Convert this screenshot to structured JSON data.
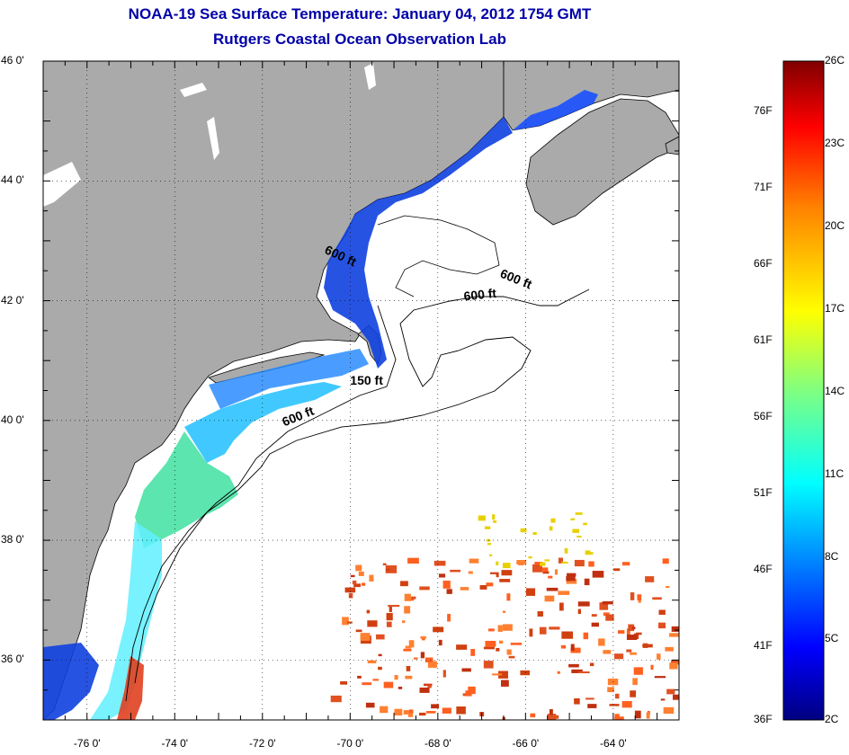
{
  "title": {
    "line1": "NOAA-19 Sea Surface Temperature:  January 04, 2012 1754 GMT",
    "line2": "Rutgers Coastal Ocean Observation Lab"
  },
  "map": {
    "latitude_labels": [
      "46 0'",
      "44 0'",
      "42 0'",
      "40 0'",
      "38 0'",
      "36 0'"
    ],
    "latitude_values": [
      46,
      44,
      42,
      40,
      38,
      36
    ],
    "longitude_labels": [
      "-76 0'",
      "-74 0'",
      "-72 0'",
      "-70 0'",
      "-68 0'",
      "-66 0'",
      "-64 0'"
    ],
    "longitude_values": [
      -76,
      -74,
      -72,
      -70,
      -68,
      -66,
      -64
    ],
    "extent": {
      "lon_min": -77,
      "lon_max": -62.5,
      "lat_min": 35.0,
      "lat_max": 46.0
    },
    "depth_labels": [
      {
        "text": "600 ft",
        "lon": -70.6,
        "lat": 42.8
      },
      {
        "text": "600 ft",
        "lon": -66.6,
        "lat": 42.4
      },
      {
        "text": "600 ft",
        "lon": -67.4,
        "lat": 42.0
      },
      {
        "text": "150 ft",
        "lon": -70.0,
        "lat": 40.6
      },
      {
        "text": "600 ft",
        "lon": -71.5,
        "lat": 39.9
      }
    ],
    "land_color": "#aaaaaa",
    "water_color": "#ffffff"
  },
  "colorbar": {
    "fahrenheit_labels": [
      "76F",
      "71F",
      "66F",
      "61F",
      "56F",
      "51F",
      "46F",
      "41F",
      "36F"
    ],
    "celsius_labels": [
      "26C",
      "23C",
      "20C",
      "17C",
      "14C",
      "11C",
      "8C",
      "5C",
      "2C"
    ],
    "colors": [
      "#800000",
      "#ff0000",
      "#ff8000",
      "#ffff00",
      "#80ff80",
      "#00ffff",
      "#0080ff",
      "#0000ff",
      "#000080"
    ]
  }
}
